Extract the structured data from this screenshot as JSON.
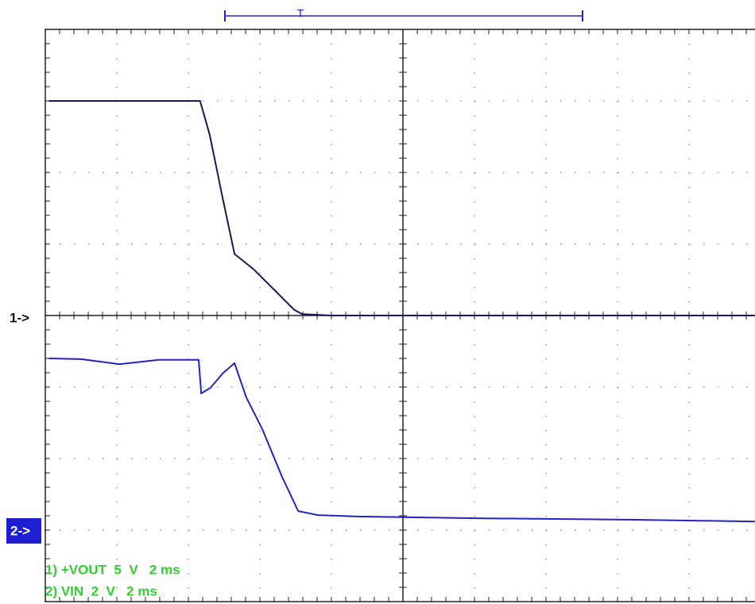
{
  "chart_data": {
    "type": "line",
    "xlim": [
      0,
      20
    ],
    "xticks": [
      0,
      2,
      4,
      6,
      8,
      10,
      12,
      14,
      16,
      18,
      20
    ],
    "ylim": [
      -20,
      20
    ],
    "yticks": [
      -20,
      -15,
      -10,
      -5,
      0,
      5,
      10,
      15,
      20
    ],
    "y2lim": [
      -2,
      14
    ],
    "grid": true,
    "annotations": {
      "trigger": "T",
      "channel1": "1->",
      "channel2": "2->"
    },
    "series": [
      {
        "name": "1) +VOUT  5  V   2 ms",
        "color": "#1a1a50",
        "x": [
          0.1,
          1,
          2,
          3,
          4,
          4.33,
          4.6,
          4.96,
          5.29,
          5.84,
          6.4,
          6.96,
          7.18,
          8,
          10,
          12,
          14,
          16,
          18,
          20
        ],
        "values": [
          15,
          15,
          15,
          15,
          15,
          15,
          12.6,
          8.2,
          4.3,
          3.2,
          1.8,
          0.4,
          0.1,
          0,
          0,
          0,
          0,
          0,
          0,
          0
        ]
      },
      {
        "name": "2) VIN  2  V   2 ms",
        "color": "#2323c8",
        "axis": "y2",
        "x": [
          0.1,
          1,
          2.07,
          3.18,
          4.29,
          4.36,
          4.62,
          4.96,
          5.29,
          5.62,
          6.07,
          6.62,
          7.07,
          7.62,
          8.73,
          12.07,
          16.51,
          19.84,
          20
        ],
        "values": [
          4.8,
          4.78,
          4.64,
          4.76,
          4.76,
          3.82,
          3.98,
          4.38,
          4.67,
          3.71,
          2.82,
          1.49,
          0.53,
          0.42,
          0.38,
          0.33,
          0.29,
          0.24,
          0.24
        ]
      }
    ]
  }
}
